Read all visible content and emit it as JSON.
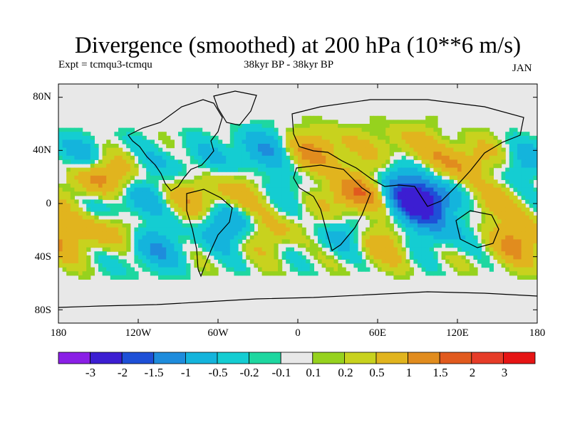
{
  "chart_data": {
    "type": "heatmap",
    "title": "Divergence (smoothed) at 200 hPa (10**6 m/s)",
    "experiment_label": "Expt = tcmqu3-tcmqu",
    "period_label": "38kyr BP - 38kyr BP",
    "month_label": "JAN",
    "variable": "divergence",
    "units": "10**6 m/s",
    "pressure_level_hPa": 200,
    "x_axis": {
      "range": [
        -180,
        180
      ],
      "tick_values": [
        -180,
        -120,
        -60,
        0,
        60,
        120,
        180
      ],
      "tick_labels": [
        "180",
        "120W",
        "60W",
        "0",
        "60E",
        "120E",
        "180"
      ]
    },
    "y_axis": {
      "range": [
        -90,
        90
      ],
      "tick_values": [
        80,
        40,
        0,
        -40,
        -80
      ],
      "tick_labels": [
        "80N",
        "40N",
        "0",
        "40S",
        "80S"
      ]
    },
    "colorbar": {
      "tick_labels": [
        "-3",
        "-2",
        "-1.5",
        "-1",
        "-0.5",
        "-0.2",
        "-0.1",
        "0.1",
        "0.2",
        "0.5",
        "1",
        "1.5",
        "2",
        "3"
      ],
      "levels": [
        -3,
        -2,
        -1.5,
        -1,
        -0.5,
        -0.2,
        -0.1,
        0.1,
        0.2,
        0.5,
        1,
        1.5,
        2,
        3
      ],
      "colors": [
        "#8a1fe6",
        "#3c1ed2",
        "#1e50d7",
        "#1e8cdc",
        "#14b4dc",
        "#14cdd2",
        "#1ed7a0",
        "#e8e8e8",
        "#96d21e",
        "#c8d21e",
        "#e1b41e",
        "#e18c1e",
        "#e15a1e",
        "#e63c28",
        "#e61414"
      ]
    },
    "field_features": [
      {
        "lon": 95,
        "lat": 2,
        "value": -2.5
      },
      {
        "lon": 70,
        "lat": 15,
        "value": -1.0
      },
      {
        "lon": -150,
        "lat": 20,
        "value": 1.5
      },
      {
        "lon": -145,
        "lat": -20,
        "value": 1.0
      },
      {
        "lon": -160,
        "lat": 35,
        "value": -0.8
      },
      {
        "lon": -130,
        "lat": 0,
        "value": -1.0
      },
      {
        "lon": -90,
        "lat": 30,
        "value": -0.5
      },
      {
        "lon": -75,
        "lat": 5,
        "value": 0.8
      },
      {
        "lon": -50,
        "lat": -15,
        "value": -1.2
      },
      {
        "lon": -30,
        "lat": 40,
        "value": -1.0
      },
      {
        "lon": -40,
        "lat": 5,
        "value": 0.6
      },
      {
        "lon": -20,
        "lat": -20,
        "value": 0.8
      },
      {
        "lon": 15,
        "lat": 40,
        "value": 1.2
      },
      {
        "lon": 45,
        "lat": 8,
        "value": 1.8
      },
      {
        "lon": 35,
        "lat": -25,
        "value": -0.8
      },
      {
        "lon": 60,
        "lat": -30,
        "value": 0.9
      },
      {
        "lon": 110,
        "lat": -20,
        "value": -0.7
      },
      {
        "lon": 125,
        "lat": 30,
        "value": 1.2
      },
      {
        "lon": 140,
        "lat": 0,
        "value": 0.8
      },
      {
        "lon": 160,
        "lat": 25,
        "value": -0.6
      },
      {
        "lon": 165,
        "lat": -30,
        "value": 1.0
      },
      {
        "lon": 0,
        "lat": 10,
        "value": -0.5
      },
      {
        "lon": -110,
        "lat": -35,
        "value": -0.9
      },
      {
        "lon": 80,
        "lat": 45,
        "value": 0.7
      }
    ]
  }
}
